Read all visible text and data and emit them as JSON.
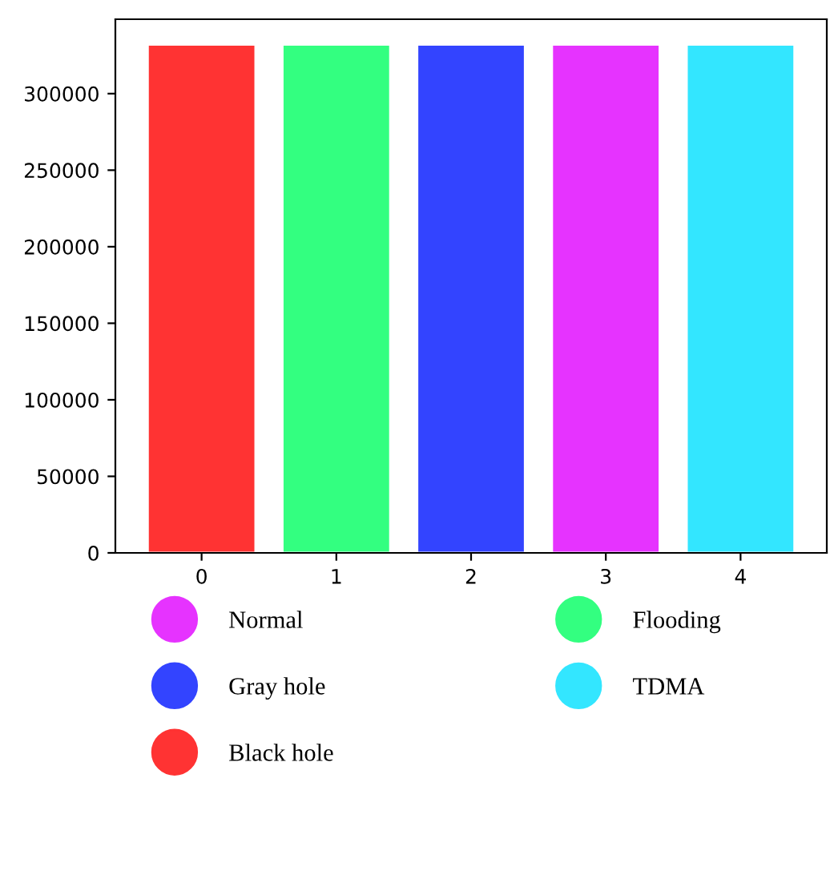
{
  "chart_data": {
    "type": "bar",
    "categories": [
      "0",
      "1",
      "2",
      "3",
      "4"
    ],
    "series": [
      {
        "name": "Normal",
        "color": "#e633ff",
        "values": [
          null,
          null,
          null,
          332000,
          null
        ]
      },
      {
        "name": "Gray hole",
        "color": "#3344ff",
        "values": [
          null,
          null,
          332000,
          null,
          null
        ]
      },
      {
        "name": "Black hole",
        "color": "#ff3333",
        "values": [
          332000,
          null,
          null,
          null,
          null
        ]
      },
      {
        "name": "Flooding",
        "color": "#33ff80",
        "values": [
          null,
          332000,
          null,
          null,
          null
        ]
      },
      {
        "name": "TDMA",
        "color": "#33e6ff",
        "values": [
          null,
          null,
          null,
          null,
          332000
        ]
      }
    ],
    "ylim": [
      0,
      348600
    ],
    "yticks": [
      0,
      50000,
      100000,
      150000,
      200000,
      250000,
      300000
    ],
    "grid": false,
    "legend": "bottom"
  }
}
